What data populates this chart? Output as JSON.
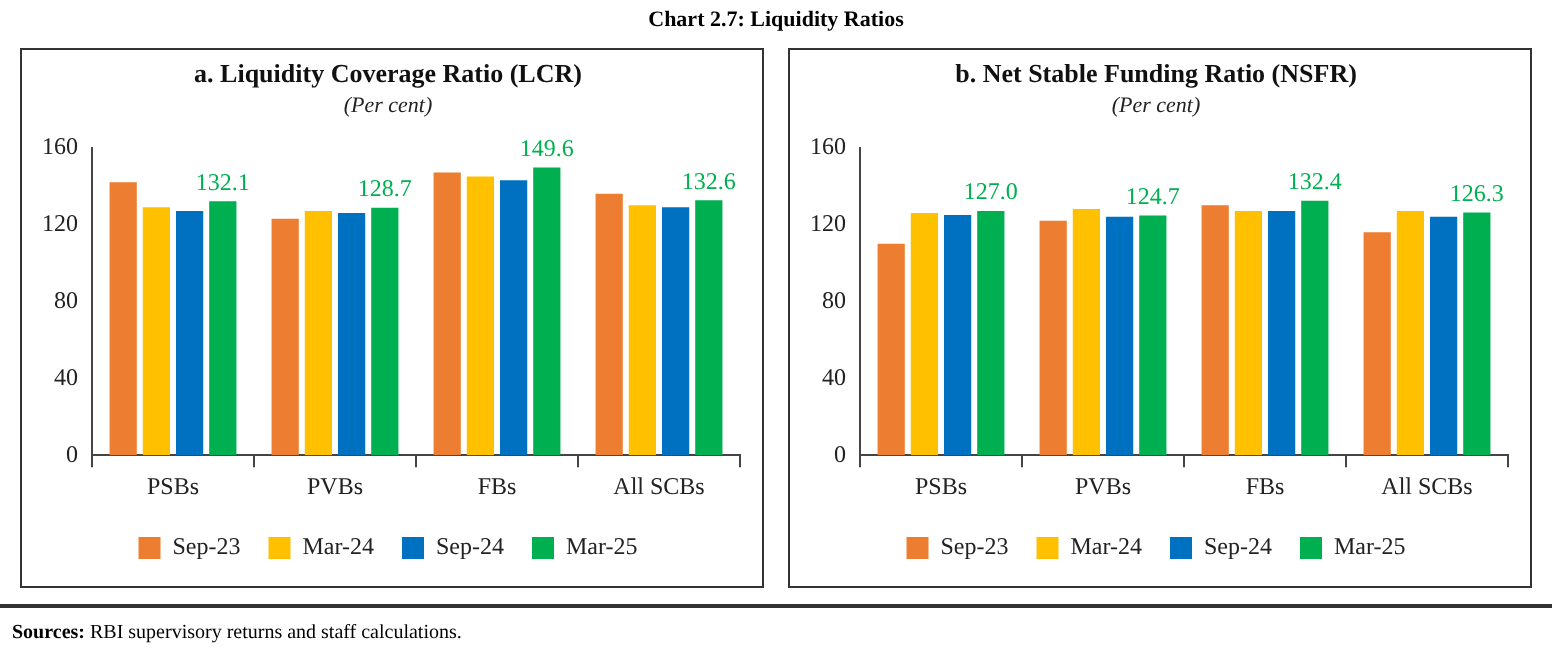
{
  "chart_data": [
    {
      "type": "bar",
      "title": "a. Liquidity Coverage Ratio (LCR)",
      "subtitle": "(Per cent)",
      "annotations": [
        "Chart 2.7: Liquidity Ratios"
      ],
      "categories": [
        "PSBs",
        "PVBs",
        "FBs",
        "All SCBs"
      ],
      "series": [
        {
          "name": "Sep-23",
          "color": "#ed7d31",
          "values": [
            142,
            123,
            147,
            136
          ]
        },
        {
          "name": "Mar-24",
          "color": "#ffc000",
          "values": [
            129,
            127,
            145,
            130
          ]
        },
        {
          "name": "Sep-24",
          "color": "#0070c0",
          "values": [
            127,
            126,
            143,
            129
          ]
        },
        {
          "name": "Mar-25",
          "color": "#00b050",
          "values": [
            132.1,
            128.7,
            149.6,
            132.6
          ],
          "value_labels": [
            "132.1",
            "128.7",
            "149.6",
            "132.6"
          ]
        }
      ],
      "ylim": [
        0,
        160
      ],
      "yticks": [
        0,
        40,
        80,
        120,
        160
      ],
      "grid": false,
      "legend": "bottom"
    },
    {
      "type": "bar",
      "title": "b. Net Stable Funding Ratio (NSFR)",
      "subtitle": "(Per cent)",
      "annotations": [
        "Sources: RBI supervisory returns and staff calculations."
      ],
      "categories": [
        "PSBs",
        "PVBs",
        "FBs",
        "All SCBs"
      ],
      "series": [
        {
          "name": "Sep-23",
          "color": "#ed7d31",
          "values": [
            110,
            122,
            130,
            116
          ]
        },
        {
          "name": "Mar-24",
          "color": "#ffc000",
          "values": [
            126,
            128,
            127,
            127
          ]
        },
        {
          "name": "Sep-24",
          "color": "#0070c0",
          "values": [
            125,
            124,
            127,
            124
          ]
        },
        {
          "name": "Mar-25",
          "color": "#00b050",
          "values": [
            127.0,
            124.7,
            132.4,
            126.3
          ],
          "value_labels": [
            "127.0",
            "124.7",
            "132.4",
            "126.3"
          ]
        }
      ],
      "ylim": [
        0,
        160
      ],
      "yticks": [
        0,
        40,
        80,
        120,
        160
      ],
      "grid": false,
      "legend": "bottom"
    }
  ]
}
